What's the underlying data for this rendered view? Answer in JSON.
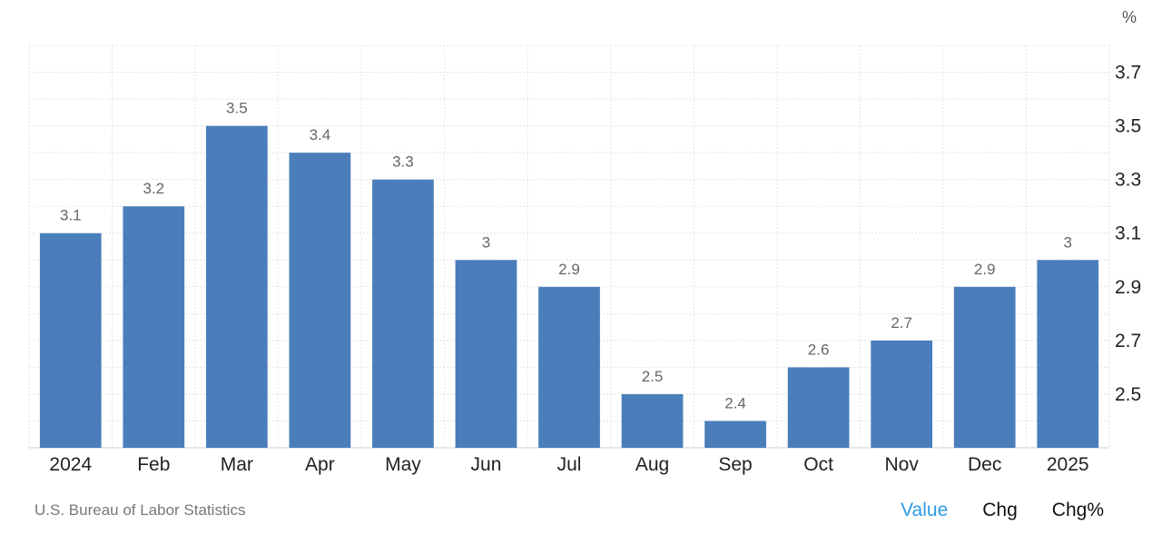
{
  "chart_data": {
    "type": "bar",
    "categories": [
      "2024",
      "Feb",
      "Mar",
      "Apr",
      "May",
      "Jun",
      "Jul",
      "Aug",
      "Sep",
      "Oct",
      "Nov",
      "Dec",
      "2025"
    ],
    "values": [
      3.1,
      3.2,
      3.5,
      3.4,
      3.3,
      3,
      2.9,
      2.5,
      2.4,
      2.6,
      2.7,
      2.9,
      3
    ],
    "data_labels": [
      "3.1",
      "3.2",
      "3.5",
      "3.4",
      "3.3",
      "3",
      "2.9",
      "2.5",
      "2.4",
      "2.6",
      "2.7",
      "2.9",
      "3"
    ],
    "y_unit": "%",
    "y_ticks": [
      "2.5",
      "2.7",
      "2.9",
      "3.1",
      "3.3",
      "3.5",
      "3.7"
    ],
    "ylim": [
      2.3,
      3.8
    ],
    "grid": true,
    "y_axis_side": "right",
    "bar_color": "#4a7ebb"
  },
  "source": "U.S. Bureau of Labor Statistics",
  "toggles": [
    {
      "label": "Value",
      "active": true
    },
    {
      "label": "Chg",
      "active": false
    },
    {
      "label": "Chg%",
      "active": false
    }
  ],
  "colors": {
    "active_toggle": "#2e9be6",
    "grid": "#e4e4e4"
  }
}
